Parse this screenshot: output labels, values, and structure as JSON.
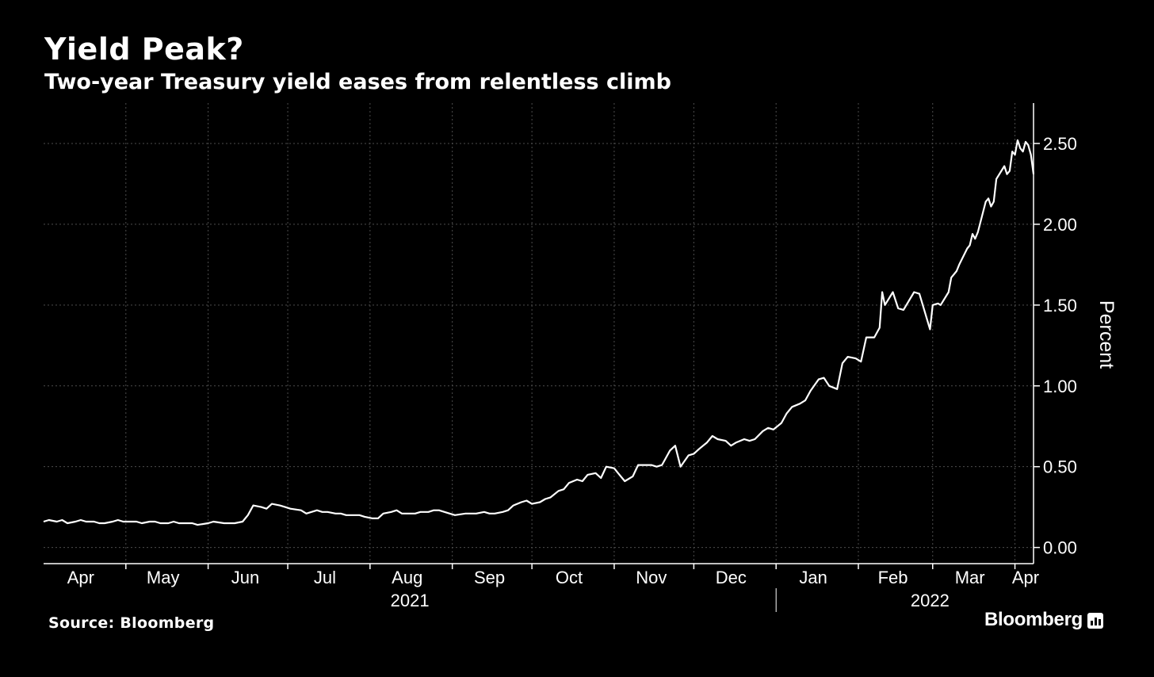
{
  "header": {
    "title": "Yield Peak?",
    "subtitle": "Two-year Treasury yield eases from relentless climb"
  },
  "footer": {
    "source": "Source: Bloomberg",
    "brand": "Bloomberg"
  },
  "colors": {
    "background": "#000000",
    "line": "#ffffff",
    "grid": "#4d4d4d"
  },
  "chart_data": {
    "type": "line",
    "title": "Yield Peak?",
    "subtitle": "Two-year Treasury yield eases from relentless climb",
    "ylabel": "Percent",
    "xlabel": "",
    "ylim": [
      -0.1,
      2.75
    ],
    "yticks": [
      0.0,
      0.5,
      1.0,
      1.5,
      2.0,
      2.5
    ],
    "ytick_labels": [
      "0.00",
      "0.50",
      "1.00",
      "1.50",
      "2.00",
      "2.50"
    ],
    "xlim": [
      "2021-03-31",
      "2022-04-08"
    ],
    "month_labels": [
      {
        "label": "Apr",
        "date": "2021-04-14"
      },
      {
        "label": "May",
        "date": "2021-05-15"
      },
      {
        "label": "Jun",
        "date": "2021-06-15"
      },
      {
        "label": "Jul",
        "date": "2021-07-15"
      },
      {
        "label": "Aug",
        "date": "2021-08-15"
      },
      {
        "label": "Sep",
        "date": "2021-09-15"
      },
      {
        "label": "Oct",
        "date": "2021-10-15"
      },
      {
        "label": "Nov",
        "date": "2021-11-15"
      },
      {
        "label": "Dec",
        "date": "2021-12-15"
      },
      {
        "label": "Jan",
        "date": "2022-01-15"
      },
      {
        "label": "Feb",
        "date": "2022-02-14"
      },
      {
        "label": "Mar",
        "date": "2022-03-15"
      },
      {
        "label": "Apr",
        "date": "2022-04-05"
      }
    ],
    "month_boundaries": [
      "2021-05-01",
      "2021-06-01",
      "2021-07-01",
      "2021-08-01",
      "2021-09-01",
      "2021-10-01",
      "2021-11-01",
      "2021-12-01",
      "2022-01-01",
      "2022-02-01",
      "2022-03-01",
      "2022-04-01"
    ],
    "year_labels": [
      {
        "label": "2021",
        "date": "2021-08-16"
      },
      {
        "label": "2022",
        "date": "2022-02-28"
      }
    ],
    "year_divider": "2022-01-01",
    "grid": true,
    "series": [
      {
        "color": "#ffffff",
        "points": [
          [
            "2021-03-31",
            0.16
          ],
          [
            "2021-04-02",
            0.17
          ],
          [
            "2021-04-05",
            0.16
          ],
          [
            "2021-04-07",
            0.17
          ],
          [
            "2021-04-09",
            0.15
          ],
          [
            "2021-04-12",
            0.16
          ],
          [
            "2021-04-14",
            0.17
          ],
          [
            "2021-04-16",
            0.16
          ],
          [
            "2021-04-19",
            0.16
          ],
          [
            "2021-04-21",
            0.15
          ],
          [
            "2021-04-23",
            0.15
          ],
          [
            "2021-04-26",
            0.16
          ],
          [
            "2021-04-28",
            0.17
          ],
          [
            "2021-04-30",
            0.16
          ],
          [
            "2021-05-03",
            0.16
          ],
          [
            "2021-05-05",
            0.16
          ],
          [
            "2021-05-07",
            0.15
          ],
          [
            "2021-05-10",
            0.16
          ],
          [
            "2021-05-12",
            0.16
          ],
          [
            "2021-05-14",
            0.15
          ],
          [
            "2021-05-17",
            0.15
          ],
          [
            "2021-05-19",
            0.16
          ],
          [
            "2021-05-21",
            0.15
          ],
          [
            "2021-05-24",
            0.15
          ],
          [
            "2021-05-26",
            0.15
          ],
          [
            "2021-05-28",
            0.14
          ],
          [
            "2021-06-01",
            0.15
          ],
          [
            "2021-06-03",
            0.16
          ],
          [
            "2021-06-07",
            0.15
          ],
          [
            "2021-06-09",
            0.15
          ],
          [
            "2021-06-11",
            0.15
          ],
          [
            "2021-06-14",
            0.16
          ],
          [
            "2021-06-16",
            0.2
          ],
          [
            "2021-06-18",
            0.26
          ],
          [
            "2021-06-21",
            0.25
          ],
          [
            "2021-06-23",
            0.24
          ],
          [
            "2021-06-25",
            0.27
          ],
          [
            "2021-06-28",
            0.26
          ],
          [
            "2021-06-30",
            0.25
          ],
          [
            "2021-07-02",
            0.24
          ],
          [
            "2021-07-06",
            0.23
          ],
          [
            "2021-07-08",
            0.21
          ],
          [
            "2021-07-12",
            0.23
          ],
          [
            "2021-07-14",
            0.22
          ],
          [
            "2021-07-16",
            0.22
          ],
          [
            "2021-07-19",
            0.21
          ],
          [
            "2021-07-21",
            0.21
          ],
          [
            "2021-07-23",
            0.2
          ],
          [
            "2021-07-26",
            0.2
          ],
          [
            "2021-07-28",
            0.2
          ],
          [
            "2021-07-30",
            0.19
          ],
          [
            "2021-08-02",
            0.18
          ],
          [
            "2021-08-04",
            0.18
          ],
          [
            "2021-08-06",
            0.21
          ],
          [
            "2021-08-09",
            0.22
          ],
          [
            "2021-08-11",
            0.23
          ],
          [
            "2021-08-13",
            0.21
          ],
          [
            "2021-08-16",
            0.21
          ],
          [
            "2021-08-18",
            0.21
          ],
          [
            "2021-08-20",
            0.22
          ],
          [
            "2021-08-23",
            0.22
          ],
          [
            "2021-08-25",
            0.23
          ],
          [
            "2021-08-27",
            0.23
          ],
          [
            "2021-08-31",
            0.21
          ],
          [
            "2021-09-02",
            0.2
          ],
          [
            "2021-09-06",
            0.21
          ],
          [
            "2021-09-08",
            0.21
          ],
          [
            "2021-09-10",
            0.21
          ],
          [
            "2021-09-13",
            0.22
          ],
          [
            "2021-09-15",
            0.21
          ],
          [
            "2021-09-17",
            0.21
          ],
          [
            "2021-09-20",
            0.22
          ],
          [
            "2021-09-22",
            0.23
          ],
          [
            "2021-09-24",
            0.26
          ],
          [
            "2021-09-27",
            0.28
          ],
          [
            "2021-09-29",
            0.29
          ],
          [
            "2021-10-01",
            0.27
          ],
          [
            "2021-10-04",
            0.28
          ],
          [
            "2021-10-06",
            0.3
          ],
          [
            "2021-10-08",
            0.31
          ],
          [
            "2021-10-11",
            0.35
          ],
          [
            "2021-10-13",
            0.36
          ],
          [
            "2021-10-15",
            0.4
          ],
          [
            "2021-10-18",
            0.42
          ],
          [
            "2021-10-20",
            0.41
          ],
          [
            "2021-10-22",
            0.45
          ],
          [
            "2021-10-25",
            0.46
          ],
          [
            "2021-10-27",
            0.43
          ],
          [
            "2021-10-29",
            0.5
          ],
          [
            "2021-11-01",
            0.49
          ],
          [
            "2021-11-03",
            0.45
          ],
          [
            "2021-11-05",
            0.41
          ],
          [
            "2021-11-08",
            0.44
          ],
          [
            "2021-11-10",
            0.51
          ],
          [
            "2021-11-12",
            0.51
          ],
          [
            "2021-11-15",
            0.51
          ],
          [
            "2021-11-17",
            0.5
          ],
          [
            "2021-11-19",
            0.51
          ],
          [
            "2021-11-22",
            0.6
          ],
          [
            "2021-11-24",
            0.63
          ],
          [
            "2021-11-26",
            0.5
          ],
          [
            "2021-11-29",
            0.57
          ],
          [
            "2021-12-01",
            0.58
          ],
          [
            "2021-12-03",
            0.61
          ],
          [
            "2021-12-06",
            0.65
          ],
          [
            "2021-12-08",
            0.69
          ],
          [
            "2021-12-10",
            0.67
          ],
          [
            "2021-12-13",
            0.66
          ],
          [
            "2021-12-15",
            0.63
          ],
          [
            "2021-12-17",
            0.65
          ],
          [
            "2021-12-20",
            0.67
          ],
          [
            "2021-12-22",
            0.66
          ],
          [
            "2021-12-24",
            0.67
          ],
          [
            "2021-12-27",
            0.72
          ],
          [
            "2021-12-29",
            0.74
          ],
          [
            "2021-12-31",
            0.73
          ],
          [
            "2022-01-03",
            0.77
          ],
          [
            "2022-01-05",
            0.83
          ],
          [
            "2022-01-07",
            0.87
          ],
          [
            "2022-01-10",
            0.89
          ],
          [
            "2022-01-12",
            0.91
          ],
          [
            "2022-01-14",
            0.97
          ],
          [
            "2022-01-17",
            1.04
          ],
          [
            "2022-01-19",
            1.05
          ],
          [
            "2022-01-21",
            1.0
          ],
          [
            "2022-01-24",
            0.98
          ],
          [
            "2022-01-26",
            1.14
          ],
          [
            "2022-01-28",
            1.18
          ],
          [
            "2022-01-31",
            1.17
          ],
          [
            "2022-02-02",
            1.15
          ],
          [
            "2022-02-04",
            1.3
          ],
          [
            "2022-02-07",
            1.3
          ],
          [
            "2022-02-09",
            1.36
          ],
          [
            "2022-02-10",
            1.58
          ],
          [
            "2022-02-11",
            1.5
          ],
          [
            "2022-02-14",
            1.58
          ],
          [
            "2022-02-16",
            1.48
          ],
          [
            "2022-02-18",
            1.47
          ],
          [
            "2022-02-22",
            1.58
          ],
          [
            "2022-02-24",
            1.57
          ],
          [
            "2022-02-28",
            1.35
          ],
          [
            "2022-03-01",
            1.5
          ],
          [
            "2022-03-03",
            1.51
          ],
          [
            "2022-03-04",
            1.5
          ],
          [
            "2022-03-07",
            1.58
          ],
          [
            "2022-03-08",
            1.67
          ],
          [
            "2022-03-10",
            1.71
          ],
          [
            "2022-03-11",
            1.75
          ],
          [
            "2022-03-14",
            1.85
          ],
          [
            "2022-03-15",
            1.87
          ],
          [
            "2022-03-16",
            1.94
          ],
          [
            "2022-03-17",
            1.91
          ],
          [
            "2022-03-18",
            1.95
          ],
          [
            "2022-03-21",
            2.14
          ],
          [
            "2022-03-22",
            2.16
          ],
          [
            "2022-03-23",
            2.11
          ],
          [
            "2022-03-24",
            2.14
          ],
          [
            "2022-03-25",
            2.28
          ],
          [
            "2022-03-28",
            2.36
          ],
          [
            "2022-03-29",
            2.31
          ],
          [
            "2022-03-30",
            2.33
          ],
          [
            "2022-03-31",
            2.45
          ],
          [
            "2022-04-01",
            2.43
          ],
          [
            "2022-04-02",
            2.52
          ],
          [
            "2022-04-03",
            2.47
          ],
          [
            "2022-04-04",
            2.45
          ],
          [
            "2022-04-05",
            2.51
          ],
          [
            "2022-04-06",
            2.49
          ],
          [
            "2022-04-07",
            2.43
          ],
          [
            "2022-04-08",
            2.31
          ]
        ]
      }
    ]
  }
}
